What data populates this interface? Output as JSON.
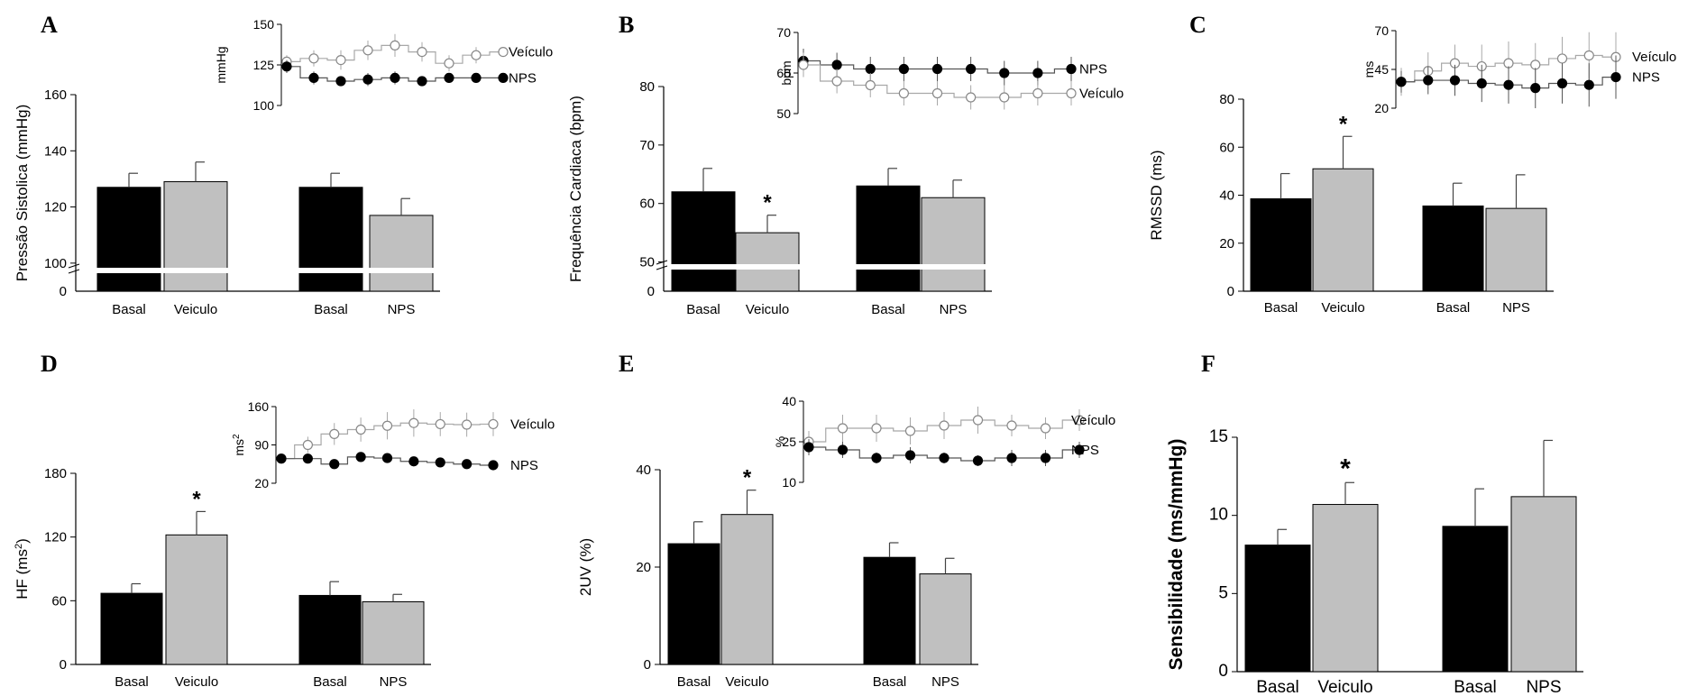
{
  "figure": {
    "colors": {
      "basal": "#000000",
      "treatment": "#c0c0c0",
      "veh_marker": "#ffffff",
      "veh_line": "#a8a8a8",
      "nps_line": "#555555",
      "axis": "#000000"
    }
  },
  "chart_data": [
    {
      "panel": "A",
      "type": "bar",
      "ylabel": "Pressão Sistolica (mmHg)",
      "categories": [
        "Basal",
        "Veiculo",
        "Basal",
        "NPS"
      ],
      "values": [
        127,
        129,
        127,
        117
      ],
      "errors": [
        5,
        7,
        5,
        6
      ],
      "series_colors": [
        "basal",
        "treatment",
        "basal",
        "treatment"
      ],
      "y_axis": {
        "min": 90,
        "max": 160,
        "ticks": [
          100,
          120,
          140,
          160
        ],
        "zero_label": "0",
        "broken": true
      },
      "significance": [],
      "inset": {
        "type": "line",
        "ylabel": "mmHg",
        "ylim": [
          100,
          150
        ],
        "ticks": [
          100,
          125,
          150
        ],
        "series": [
          {
            "name": "Veículo",
            "values": [
              127,
              129,
              128,
              134,
              137,
              133,
              126,
              131,
              133
            ],
            "errors": [
              4,
              5,
              6,
              6,
              7,
              6,
              5,
              5,
              3
            ]
          },
          {
            "name": "NPS",
            "values": [
              124,
              117,
              115,
              116,
              117,
              115,
              117,
              117,
              117
            ],
            "errors": [
              4,
              4,
              3,
              4,
              4,
              3,
              3,
              3,
              3
            ]
          }
        ]
      }
    },
    {
      "panel": "B",
      "type": "bar",
      "ylabel": "Frequência Cardiaca (bpm)",
      "categories": [
        "Basal",
        "Veiculo",
        "Basal",
        "NPS"
      ],
      "values": [
        62,
        55,
        63,
        61
      ],
      "errors": [
        4,
        3,
        3,
        3
      ],
      "series_colors": [
        "basal",
        "treatment",
        "basal",
        "treatment"
      ],
      "y_axis": {
        "min": 45,
        "max": 80,
        "ticks": [
          50,
          60,
          70,
          80
        ],
        "zero_label": "0",
        "broken": true
      },
      "significance": [
        "",
        "*",
        "",
        ""
      ],
      "inset": {
        "type": "line",
        "ylabel": "bpm",
        "ylim": [
          50,
          70
        ],
        "ticks": [
          50,
          60,
          70
        ],
        "series": [
          {
            "name": "NPS",
            "values": [
              63,
              62,
              61,
              61,
              61,
              61,
              60,
              60,
              61
            ],
            "errors": [
              3,
              3,
              3,
              3,
              3,
              3,
              3,
              3,
              3
            ]
          },
          {
            "name": "Veículo",
            "values": [
              62,
              58,
              57,
              55,
              55,
              54,
              54,
              55,
              55
            ],
            "errors": [
              3,
              3,
              3,
              3,
              3,
              3,
              3,
              3,
              3
            ]
          }
        ]
      }
    },
    {
      "panel": "C",
      "type": "bar",
      "ylabel": "RMSSD (ms)",
      "categories": [
        "Basal",
        "Veiculo",
        "Basal",
        "NPS"
      ],
      "values": [
        38.5,
        51,
        35.5,
        34.5
      ],
      "errors": [
        10.5,
        13.5,
        9.5,
        14
      ],
      "series_colors": [
        "basal",
        "treatment",
        "basal",
        "treatment"
      ],
      "y_axis": {
        "min": 0,
        "max": 80,
        "ticks": [
          0,
          20,
          40,
          60,
          80
        ],
        "broken": false
      },
      "significance": [
        "",
        "*",
        "",
        ""
      ],
      "inset": {
        "type": "line",
        "ylabel": "ms",
        "ylim": [
          20,
          70
        ],
        "ticks": [
          20,
          45,
          70
        ],
        "series": [
          {
            "name": "Veículo",
            "values": [
              37,
              44,
              49,
              47,
              49,
              48,
              52,
              54,
              53
            ],
            "errors": [
              9,
              12,
              12,
              14,
              14,
              14,
              14,
              15,
              16
            ]
          },
          {
            "name": "NPS",
            "values": [
              37,
              38,
              38,
              36,
              35,
              33,
              36,
              35,
              40
            ],
            "errors": [
              7,
              9,
              10,
              12,
              12,
              13,
              13,
              14,
              14
            ]
          }
        ]
      }
    },
    {
      "panel": "D",
      "type": "bar",
      "ylabel": "HF (ms²)",
      "categories": [
        "Basal",
        "Veiculo",
        "Basal",
        "NPS"
      ],
      "values": [
        67,
        122,
        65,
        59
      ],
      "errors": [
        9,
        22,
        13,
        7
      ],
      "series_colors": [
        "basal",
        "treatment",
        "basal",
        "treatment"
      ],
      "y_axis": {
        "min": 0,
        "max": 180,
        "ticks": [
          0,
          60,
          120,
          180
        ],
        "broken": false
      },
      "significance": [
        "",
        "*",
        "",
        ""
      ],
      "inset": {
        "type": "line",
        "ylabel": "ms²",
        "ylim": [
          20,
          160
        ],
        "ticks": [
          20,
          90,
          160
        ],
        "series": [
          {
            "name": "Veículo",
            "values": [
              65,
              90,
              110,
              118,
              125,
              130,
              128,
              127,
              128
            ],
            "errors": [
              8,
              15,
              20,
              22,
              25,
              25,
              22,
              22,
              22
            ]
          },
          {
            "name": "NPS",
            "values": [
              65,
              65,
              55,
              68,
              66,
              60,
              58,
              55,
              53
            ],
            "errors": [
              7,
              6,
              5,
              6,
              5,
              5,
              5,
              5,
              4
            ]
          }
        ]
      }
    },
    {
      "panel": "E",
      "type": "bar",
      "ylabel": "2UV (%)",
      "categories": [
        "Basal",
        "Veiculo",
        "Basal",
        "NPS"
      ],
      "values": [
        24.8,
        30.8,
        22,
        18.6
      ],
      "errors": [
        4.5,
        5,
        3,
        3.2
      ],
      "series_colors": [
        "basal",
        "treatment",
        "basal",
        "treatment"
      ],
      "y_axis": {
        "min": 0,
        "max": 40,
        "ticks": [
          0,
          20,
          40
        ],
        "broken": false
      },
      "significance": [
        "",
        "*",
        "",
        ""
      ],
      "inset": {
        "type": "line",
        "ylabel": "%",
        "ylim": [
          10,
          40
        ],
        "ticks": [
          10,
          25,
          40
        ],
        "series": [
          {
            "name": "Veículo",
            "values": [
              25,
              30,
              30,
              29,
              31,
              33,
              31,
              30,
              33
            ],
            "errors": [
              4,
              5,
              5,
              5,
              5,
              5,
              4,
              4,
              4
            ]
          },
          {
            "name": "NPS",
            "values": [
              23,
              22,
              19,
              20,
              19,
              18,
              19,
              19,
              22
            ],
            "errors": [
              3,
              3,
              2,
              3,
              2,
              2,
              3,
              3,
              3
            ]
          }
        ]
      }
    },
    {
      "panel": "F",
      "type": "bar",
      "ylabel": "Sensibilidade (ms/mmHg)",
      "categories": [
        "Basal",
        "Veiculo",
        "Basal",
        "NPS"
      ],
      "values": [
        8.1,
        10.7,
        9.3,
        11.2
      ],
      "errors": [
        1,
        1.4,
        2.4,
        3.6
      ],
      "series_colors": [
        "basal",
        "treatment",
        "basal",
        "treatment"
      ],
      "y_axis": {
        "min": 0,
        "max": 15,
        "ticks": [
          0,
          5,
          10,
          15
        ],
        "broken": false
      },
      "significance": [
        "",
        "*",
        "",
        ""
      ],
      "inset": null
    }
  ]
}
